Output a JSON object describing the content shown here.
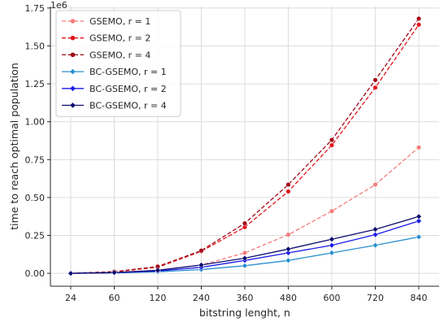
{
  "chart_data": {
    "type": "line",
    "x": [
      24,
      60,
      120,
      240,
      360,
      480,
      600,
      720,
      840
    ],
    "xticklabels": [
      "24",
      "60",
      "120",
      "240",
      "360",
      "480",
      "600",
      "720",
      "840"
    ],
    "xlabel": "bitstring lenght, n",
    "ylabel": "time to reach optimal population",
    "y_offset_label": "1e6",
    "ylim": [
      -0.085,
      1.76
    ],
    "yticks": [
      0.0,
      0.25,
      0.5,
      0.75,
      1.0,
      1.25,
      1.5,
      1.75
    ],
    "yticklabels": [
      "0.00",
      "0.25",
      "0.50",
      "0.75",
      "1.00",
      "1.25",
      "1.50",
      "1.75"
    ],
    "grid": true,
    "legend_position": "top-left",
    "series": [
      {
        "name": "GSEMO, r = 1",
        "color": "#f47c7c",
        "dash": true,
        "values": [
          0.0,
          0.005,
          0.02,
          0.055,
          0.135,
          0.255,
          0.41,
          0.585,
          0.83
        ]
      },
      {
        "name": "GSEMO, r = 2",
        "color": "#e3141b",
        "dash": true,
        "values": [
          0.0,
          0.01,
          0.04,
          0.145,
          0.305,
          0.54,
          0.845,
          1.225,
          1.64
        ]
      },
      {
        "name": "GSEMO, r = 4",
        "color": "#a00717",
        "dash": true,
        "values": [
          0.0,
          0.011,
          0.045,
          0.15,
          0.33,
          0.585,
          0.88,
          1.275,
          1.68
        ]
      },
      {
        "name": "BC-GSEMO, r = 1",
        "color": "#2a8fcf",
        "dash": false,
        "values": [
          0.0,
          0.003,
          0.01,
          0.025,
          0.05,
          0.085,
          0.135,
          0.185,
          0.24
        ]
      },
      {
        "name": "BC-GSEMO, r = 2",
        "color": "#1a1ae8",
        "dash": false,
        "values": [
          0.0,
          0.004,
          0.015,
          0.04,
          0.085,
          0.135,
          0.185,
          0.255,
          0.345
        ]
      },
      {
        "name": "BC-GSEMO, r = 4",
        "color": "#0b0b6e",
        "dash": false,
        "values": [
          0.0,
          0.005,
          0.02,
          0.055,
          0.1,
          0.16,
          0.225,
          0.29,
          0.375
        ]
      }
    ]
  }
}
